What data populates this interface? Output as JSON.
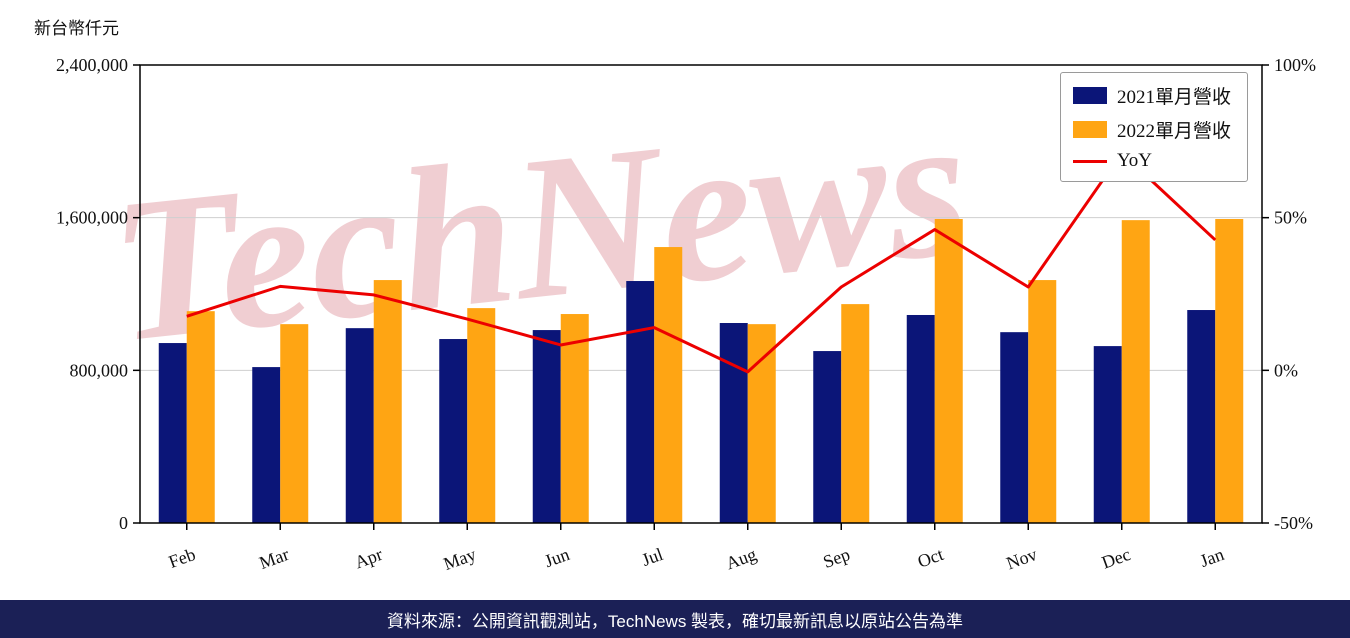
{
  "page": {
    "unit_label": "新台幣仟元",
    "watermark": "TechNews",
    "footer": "資料來源：公開資訊觀測站，TechNews 製表，確切最新訊息以原站公告為準",
    "footer_bg": "#1B2056",
    "watermark_color": "#D9808C"
  },
  "chart_data": {
    "type": "bar+line",
    "title": "",
    "categories": [
      "Feb",
      "Mar",
      "Apr",
      "May",
      "Jun",
      "Jul",
      "Aug",
      "Sep",
      "Oct",
      "Nov",
      "Dec",
      "Jan"
    ],
    "series": [
      {
        "name": "2021單月營收",
        "type": "bar",
        "axis": "left",
        "color": "#0B1578",
        "values": [
          943000,
          817000,
          1021000,
          964000,
          1011000,
          1268000,
          1048000,
          901000,
          1090000,
          1000000,
          927000,
          1116000
        ]
      },
      {
        "name": "2022單月營收",
        "type": "bar",
        "axis": "left",
        "color": "#FFA513",
        "values": [
          1110000,
          1042000,
          1273000,
          1126000,
          1095000,
          1446000,
          1042000,
          1147000,
          1593000,
          1273000,
          1587000,
          1593000
        ]
      },
      {
        "name": "YoY",
        "type": "line",
        "axis": "right",
        "color": "#EC0000",
        "values": [
          17.7,
          27.5,
          24.7,
          16.8,
          8.3,
          14.0,
          -0.5,
          27.3,
          46.1,
          27.3,
          71.2,
          42.7
        ]
      }
    ],
    "left_axis": {
      "label": "新台幣仟元",
      "min": 0,
      "max": 2400000,
      "ticks": [
        {
          "value": 0,
          "label": "0"
        },
        {
          "value": 800000,
          "label": "800,000"
        },
        {
          "value": 1600000,
          "label": "1,600,000"
        },
        {
          "value": 2400000,
          "label": "2,400,000"
        }
      ]
    },
    "right_axis": {
      "label": "YoY %",
      "min": -50,
      "max": 100,
      "ticks": [
        {
          "value": -50,
          "label": "-50%"
        },
        {
          "value": 0,
          "label": "0%"
        },
        {
          "value": 50,
          "label": "50%"
        },
        {
          "value": 100,
          "label": "100%"
        }
      ]
    },
    "legend_position": "top-right",
    "grid": true
  }
}
